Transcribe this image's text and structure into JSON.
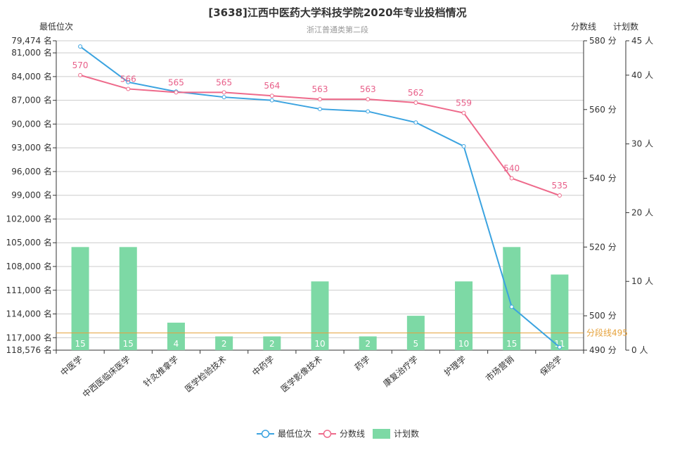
{
  "chart_data": {
    "type": "bar",
    "title": "[3638]江西中医药大学科技学院2020年专业投档情况",
    "subtitle": "浙江普通类第二段",
    "categories": [
      "中医学",
      "中西医临床医学",
      "针灸推拿学",
      "医学检验技术",
      "中药学",
      "医学影像技术",
      "药学",
      "康复治疗学",
      "护理学",
      "市场营销",
      "保险学"
    ],
    "series": [
      {
        "name": "最低位次",
        "type": "line",
        "axis": "left",
        "values": [
          80200,
          84700,
          85900,
          86600,
          87000,
          88100,
          88400,
          89800,
          92800,
          113100,
          118200
        ]
      },
      {
        "name": "分数线",
        "type": "line",
        "axis": "right",
        "values": [
          570,
          566,
          565,
          565,
          564,
          563,
          563,
          562,
          559,
          540,
          535
        ]
      },
      {
        "name": "计划数",
        "type": "bar",
        "axis": "plan",
        "values": [
          15,
          15,
          4,
          2,
          2,
          10,
          2,
          5,
          10,
          15,
          11
        ]
      }
    ],
    "left_axis": {
      "name": "最低位次",
      "min": 79474,
      "max": 118576,
      "inverse": true,
      "ticks": [
        79474,
        81000,
        84000,
        87000,
        90000,
        93000,
        96000,
        99000,
        102000,
        105000,
        108000,
        111000,
        114000,
        117000,
        118576
      ],
      "tick_labels": [
        "79,474 名",
        "81,000 名",
        "84,000 名",
        "87,000 名",
        "90,000 名",
        "93,000 名",
        "96,000 名",
        "99,000 名",
        "102,000 名",
        "105,000 名",
        "108,000 名",
        "111,000 名",
        "114,000 名",
        "117,000 名",
        "118,576 名"
      ]
    },
    "score_axis": {
      "name": "分数线",
      "min": 490,
      "max": 580,
      "ticks": [
        490,
        500,
        520,
        540,
        560,
        580
      ],
      "tick_labels": [
        "490 分",
        "500 分",
        "520 分",
        "540 分",
        "560 分",
        "580 分"
      ]
    },
    "plan_axis": {
      "name": "计划数",
      "min": 0,
      "max": 45,
      "ticks": [
        0,
        10,
        20,
        30,
        40,
        45
      ],
      "tick_labels": [
        "0 人",
        "10 人",
        "20 人",
        "30 人",
        "40 人",
        "45 人"
      ]
    },
    "mark_line": {
      "label": "分段线495",
      "value": 495
    },
    "legend": {
      "placement": "bottom-center",
      "items": [
        "最低位次",
        "分数线",
        "计划数"
      ]
    },
    "colors": {
      "rank": "#3ba3e0",
      "score": "#ee6a8b",
      "plan": "#7dd9a5",
      "mark": "#e6a23c",
      "grid": "#cccccc",
      "axis": "#333333"
    }
  }
}
